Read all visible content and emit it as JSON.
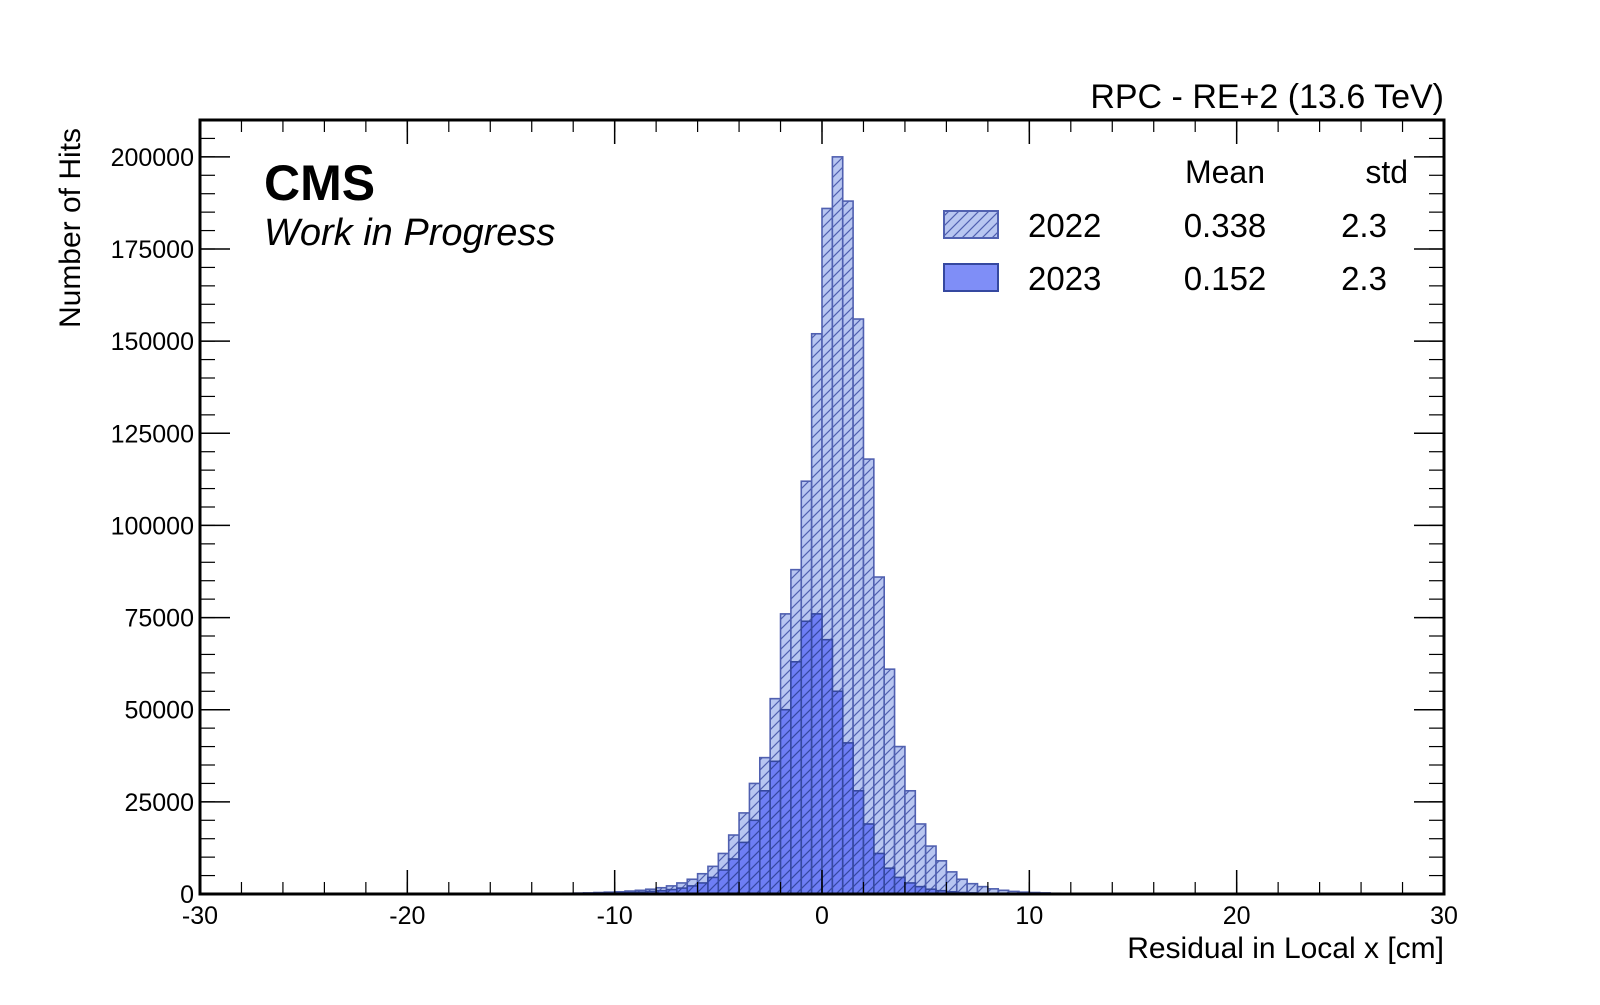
{
  "header": {
    "right_title": "RPC - RE+2 (13.6 TeV)",
    "experiment": "CMS",
    "status": "Work in Progress"
  },
  "chart_data": {
    "type": "histogram",
    "xlabel": "Residual in Local x [cm]",
    "ylabel": "Number of Hits",
    "xlim": [
      -30,
      30
    ],
    "ylim": [
      0,
      210000
    ],
    "x_ticks": [
      -30,
      -20,
      -10,
      0,
      10,
      20,
      30
    ],
    "x_tick_labels": [
      "-30",
      "-20",
      "-10",
      "0",
      "10",
      "20",
      "30"
    ],
    "y_ticks": [
      0,
      25000,
      50000,
      75000,
      100000,
      125000,
      150000,
      175000,
      200000
    ],
    "y_tick_labels": [
      "0",
      "25000",
      "50000",
      "75000",
      "100000",
      "125000",
      "150000",
      "175000",
      "200000"
    ],
    "grid": false,
    "bin_edges": [
      -12.5,
      -12,
      -11.5,
      -11,
      -10.5,
      -10,
      -9.5,
      -9,
      -8.5,
      -8,
      -7.5,
      -7,
      -6.5,
      -6,
      -5.5,
      -5,
      -4.5,
      -4,
      -3.5,
      -3,
      -2.5,
      -2,
      -1.5,
      -1,
      -0.5,
      0,
      0.5,
      1,
      1.5,
      2,
      2.5,
      3,
      3.5,
      4,
      4.5,
      5,
      5.5,
      6,
      6.5,
      7,
      7.5,
      8,
      8.5,
      9,
      9.5,
      10,
      10.5,
      11,
      11.5,
      12,
      12.5,
      13,
      13.5
    ],
    "legend": {
      "position": "top-right",
      "col_mean": "Mean",
      "col_std": "std",
      "entries": [
        {
          "label": "2022",
          "mean": "0.338",
          "std": "2.3"
        },
        {
          "label": "2023",
          "mean": "0.152",
          "std": "2.3"
        }
      ]
    },
    "series": [
      {
        "name": "2022",
        "fill": "#b8c6f1",
        "edge": "#5060b0",
        "hatch": true,
        "values": [
          200,
          250,
          300,
          400,
          500,
          600,
          800,
          1000,
          1300,
          1700,
          2200,
          3000,
          4000,
          5500,
          7500,
          11000,
          16000,
          22000,
          30000,
          37000,
          53000,
          76000,
          88000,
          112000,
          152000,
          186000,
          200000,
          188000,
          156000,
          118000,
          86000,
          61000,
          40000,
          28000,
          19000,
          13000,
          9000,
          6000,
          4000,
          2800,
          2000,
          1400,
          1000,
          700,
          500,
          400,
          300,
          200,
          150,
          100,
          80,
          50
        ]
      },
      {
        "name": "2023",
        "fill": "#6e7ef5",
        "edge": "#3548a0",
        "hatch": true,
        "values": [
          100,
          120,
          150,
          200,
          250,
          300,
          400,
          500,
          700,
          900,
          1200,
          1600,
          2200,
          3000,
          4500,
          6500,
          9500,
          14000,
          20000,
          28000,
          36000,
          50000,
          63000,
          74000,
          76000,
          69000,
          55000,
          41000,
          28000,
          19000,
          11000,
          7000,
          4500,
          3000,
          2000,
          1300,
          900,
          600,
          400,
          300,
          200,
          150,
          100,
          80,
          60,
          40,
          30,
          20,
          15,
          10,
          8,
          5
        ]
      }
    ]
  }
}
